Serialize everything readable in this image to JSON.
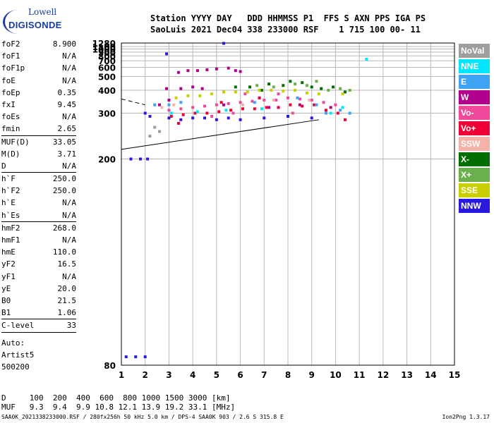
{
  "logo": {
    "line1": "Lowell",
    "line2": "DIGISONDE"
  },
  "header": {
    "line1": "Station YYYY DAY   DDD HHMMSS P1  FFS S AXN PPS IGA PS",
    "line2": "SaoLuis 2021 Dec04 338 233000 RSF    1 715 100 00- 11"
  },
  "params": [
    {
      "label": "foF2",
      "value": "8.900"
    },
    {
      "label": "foF1",
      "value": "N/A"
    },
    {
      "label": "foF1p",
      "value": "N/A"
    },
    {
      "label": "foE",
      "value": "N/A"
    },
    {
      "label": "foEp",
      "value": "0.35"
    },
    {
      "label": "fxI",
      "value": "9.45"
    },
    {
      "label": "foEs",
      "value": "N/A"
    },
    {
      "label": "fmin",
      "value": "2.65",
      "sep_after": true
    },
    {
      "label": "MUF(D)",
      "value": "33.05"
    },
    {
      "label": "M(D)",
      "value": "3.71"
    },
    {
      "label": "D",
      "value": "N/A",
      "sep_after": true
    },
    {
      "label": "h`F",
      "value": "250.0"
    },
    {
      "label": "h`F2",
      "value": "250.0"
    },
    {
      "label": "h`E",
      "value": "N/A"
    },
    {
      "label": "h`Es",
      "value": "N/A",
      "sep_after": true
    },
    {
      "label": "hmF2",
      "value": "268.0"
    },
    {
      "label": "hmF1",
      "value": "N/A"
    },
    {
      "label": "hmE",
      "value": "110.0"
    },
    {
      "label": "yF2",
      "value": "16.5"
    },
    {
      "label": "yF1",
      "value": "N/A"
    },
    {
      "label": "yE",
      "value": "20.0"
    },
    {
      "label": "B0",
      "value": "21.5"
    },
    {
      "label": "B1",
      "value": "1.06",
      "sep_after": true
    },
    {
      "label": "C-level",
      "value": "33",
      "sep_after": true
    }
  ],
  "auto": [
    "Auto:",
    "Artist5",
    "500200"
  ],
  "bottom_table": {
    "line1": "D     100  200  400  600  800 1000 1500 3000 [km]",
    "line2": "MUF   9.3  9.4  9.9 10.8 12.1 13.9 19.2 33.1 [MHz]"
  },
  "footer": {
    "left": "SAA0K_2021338233000.RSF / 280fx256h 50 kHz 5.0 km / DPS-4 SAA0K 903 / 2.6 S 315.8 E",
    "right": "Ion2Png 1.3.17"
  },
  "legend": [
    {
      "label": "NoVal",
      "color": "#9e9e9e"
    },
    {
      "label": "NNE",
      "color": "#00e6ff"
    },
    {
      "label": "E",
      "color": "#3ea3f5"
    },
    {
      "label": "W",
      "color": "#b0008c"
    },
    {
      "label": "Vo-",
      "color": "#f0489a"
    },
    {
      "label": "Vo+",
      "color": "#ee0037"
    },
    {
      "label": "SSW",
      "color": "#f4b3a8"
    },
    {
      "label": "X-",
      "color": "#006e00"
    },
    {
      "label": "X+",
      "color": "#6ab04c"
    },
    {
      "label": "SSE",
      "color": "#c9cf00"
    },
    {
      "label": "NNW",
      "color": "#2a1ae0"
    }
  ],
  "chart_data": {
    "type": "scatter",
    "title": "",
    "xlabel": "",
    "ylabel": "",
    "xlim": [
      1,
      15
    ],
    "ylim": [
      80,
      1280
    ],
    "y_scale": "reciprocal",
    "grid": true,
    "x_ticks": [
      "1",
      "2",
      "3",
      "4",
      "5",
      "6",
      "7",
      "8",
      "9",
      "10",
      "11",
      "12",
      "13",
      "14",
      "15"
    ],
    "y_ticks": [
      "80",
      "200",
      "300",
      "400",
      "500",
      "600",
      "700",
      "800",
      "900",
      "1000",
      "1100",
      "1280"
    ],
    "series": [
      {
        "name": "W",
        "points": [
          [
            2.9,
            410
          ],
          [
            3.5,
            410
          ],
          [
            4.0,
            420
          ],
          [
            4.4,
            410
          ],
          [
            3.4,
            540
          ],
          [
            3.8,
            560
          ],
          [
            4.2,
            560
          ],
          [
            4.6,
            570
          ],
          [
            5.0,
            580
          ],
          [
            5.5,
            590
          ],
          [
            5.8,
            560
          ],
          [
            6.0,
            550
          ],
          [
            3.0,
            350
          ],
          [
            2.6,
            330
          ],
          [
            5.3,
            330
          ],
          [
            7.2,
            320
          ],
          [
            8.5,
            330
          ],
          [
            9.8,
            320
          ]
        ]
      },
      {
        "name": "Vo-",
        "points": [
          [
            3.0,
            310
          ],
          [
            3.5,
            315
          ],
          [
            4.0,
            320
          ],
          [
            4.5,
            325
          ],
          [
            5.0,
            330
          ],
          [
            5.5,
            335
          ],
          [
            6.0,
            340
          ],
          [
            6.5,
            345
          ],
          [
            7.0,
            350
          ],
          [
            7.5,
            350
          ],
          [
            8.0,
            360
          ],
          [
            8.5,
            355
          ],
          [
            9.0,
            350
          ],
          [
            9.5,
            340
          ],
          [
            10.0,
            330
          ],
          [
            6.2,
            380
          ],
          [
            7.6,
            380
          ],
          [
            5.7,
            300
          ],
          [
            4.8,
            290
          ],
          [
            8.2,
            300
          ]
        ]
      },
      {
        "name": "Vo+",
        "points": [
          [
            3.1,
            290
          ],
          [
            3.6,
            295
          ],
          [
            4.1,
            300
          ],
          [
            4.6,
            300
          ],
          [
            5.1,
            305
          ],
          [
            5.6,
            310
          ],
          [
            6.1,
            315
          ],
          [
            6.6,
            315
          ],
          [
            7.1,
            320
          ],
          [
            7.6,
            320
          ],
          [
            8.1,
            330
          ],
          [
            8.6,
            325
          ],
          [
            9.1,
            330
          ],
          [
            9.6,
            310
          ],
          [
            10.1,
            300
          ],
          [
            10.4,
            280
          ],
          [
            6.8,
            360
          ],
          [
            5.2,
            340
          ],
          [
            3.4,
            270
          ]
        ]
      },
      {
        "name": "E",
        "points": [
          [
            3.0,
            330
          ],
          [
            3.5,
            340
          ],
          [
            6.6,
            340
          ],
          [
            8.4,
            360
          ],
          [
            9.2,
            330
          ],
          [
            9.6,
            300
          ],
          [
            10.2,
            310
          ],
          [
            10.6,
            300
          ],
          [
            2.4,
            330
          ]
        ]
      },
      {
        "name": "NNW",
        "points": [
          [
            1.2,
            82
          ],
          [
            1.6,
            82
          ],
          [
            2.0,
            82
          ],
          [
            1.4,
            200
          ],
          [
            1.8,
            200
          ],
          [
            2.1,
            200
          ],
          [
            2.0,
            300
          ],
          [
            2.2,
            290
          ],
          [
            3.0,
            285
          ],
          [
            3.5,
            280
          ],
          [
            4.0,
            285
          ],
          [
            4.5,
            285
          ],
          [
            5.0,
            280
          ],
          [
            5.5,
            285
          ],
          [
            6.0,
            280
          ],
          [
            7.0,
            285
          ],
          [
            8.0,
            290
          ],
          [
            9.0,
            285
          ],
          [
            2.9,
            850
          ],
          [
            5.3,
            1260
          ]
        ]
      },
      {
        "name": "X-",
        "points": [
          [
            6.4,
            420
          ],
          [
            7.2,
            440
          ],
          [
            7.8,
            430
          ],
          [
            8.1,
            460
          ],
          [
            8.6,
            450
          ],
          [
            9.0,
            420
          ],
          [
            9.4,
            410
          ],
          [
            9.9,
            420
          ],
          [
            10.4,
            390
          ],
          [
            6.9,
            400
          ],
          [
            5.8,
            420
          ]
        ]
      },
      {
        "name": "X+",
        "points": [
          [
            6.7,
            430
          ],
          [
            7.4,
            420
          ],
          [
            8.3,
            440
          ],
          [
            8.8,
            430
          ],
          [
            9.2,
            460
          ],
          [
            9.7,
            400
          ],
          [
            10.2,
            410
          ],
          [
            10.6,
            400
          ]
        ]
      },
      {
        "name": "SSE",
        "points": [
          [
            3.3,
            360
          ],
          [
            3.8,
            370
          ],
          [
            4.3,
            370
          ],
          [
            4.8,
            380
          ],
          [
            5.3,
            390
          ],
          [
            5.8,
            390
          ],
          [
            6.3,
            390
          ],
          [
            6.8,
            400
          ],
          [
            7.3,
            400
          ],
          [
            7.8,
            395
          ],
          [
            8.3,
            400
          ],
          [
            8.8,
            385
          ],
          [
            9.3,
            380
          ],
          [
            10.3,
            380
          ]
        ]
      },
      {
        "name": "SSW",
        "points": [
          [
            2.7,
            320
          ],
          [
            3.2,
            330
          ],
          [
            6.1,
            330
          ],
          [
            7.4,
            350
          ],
          [
            8.9,
            350
          ]
        ]
      },
      {
        "name": "NNE",
        "points": [
          [
            3.1,
            300
          ],
          [
            4.2,
            305
          ],
          [
            5.4,
            310
          ],
          [
            6.9,
            315
          ],
          [
            9.8,
            300
          ],
          [
            10.3,
            320
          ],
          [
            11.3,
            730
          ]
        ]
      },
      {
        "name": "NoVal",
        "points": [
          [
            2.2,
            240
          ],
          [
            2.6,
            250
          ],
          [
            2.4,
            260
          ]
        ]
      }
    ],
    "trace_lines": [
      {
        "points": [
          [
            1.0,
            215
          ],
          [
            9.3,
            280
          ]
        ]
      },
      {
        "points": [
          [
            1.0,
            355
          ],
          [
            2.0,
            330
          ]
        ],
        "dashed": true
      }
    ]
  }
}
